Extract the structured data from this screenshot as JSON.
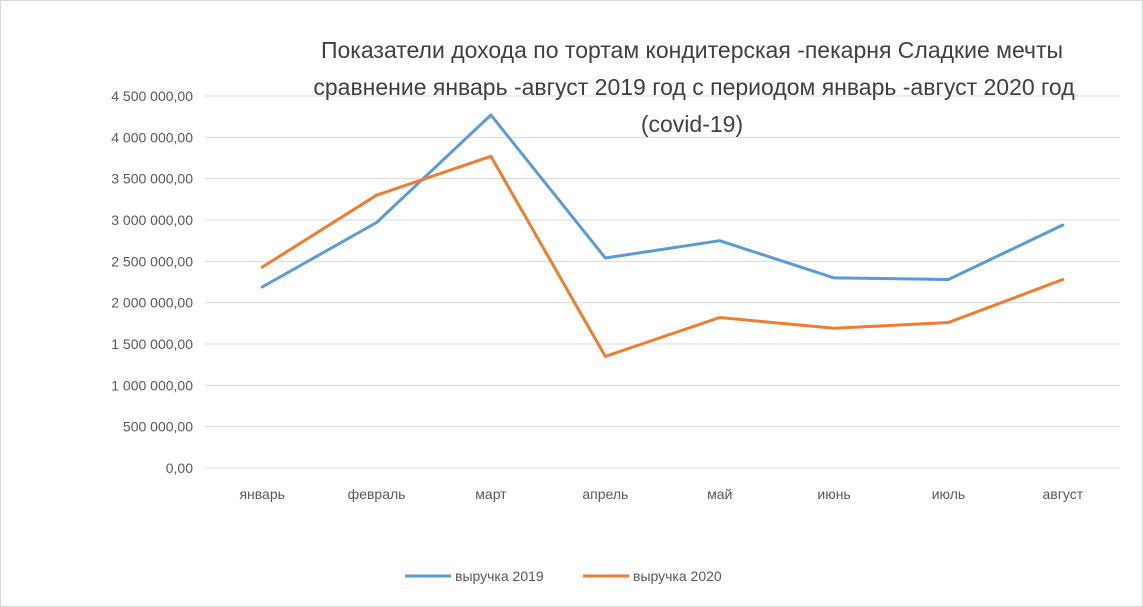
{
  "chart_data": {
    "type": "line",
    "title_lines": [
      "Показатели дохода по тортам кондитерская -пекарня  Сладкие мечты",
      "сравнение январь -август 2019 год  с периодом январь -август 2020 год",
      "(covid-19)"
    ],
    "categories": [
      "январь",
      "февраль",
      "март",
      "апрель",
      "май",
      "июнь",
      "июль",
      "август"
    ],
    "y_ticks": [
      "0,00",
      "500 000,00",
      "1 000 000,00",
      "1 500 000,00",
      "2 000 000,00",
      "2 500 000,00",
      "3 000 000,00",
      "3 500 000,00",
      "4 000 000,00",
      "4 500 000,00"
    ],
    "ylim": [
      0,
      4500000
    ],
    "grid": true,
    "legend_position": "bottom",
    "series": [
      {
        "name": "выручка 2019",
        "color": "#5b9bd5",
        "values": [
          2190000,
          2970000,
          4270000,
          2540000,
          2750000,
          2300000,
          2280000,
          2940000
        ]
      },
      {
        "name": "выручка 2020",
        "color": "#ed7d31",
        "values": [
          2430000,
          3300000,
          3770000,
          1350000,
          1820000,
          1690000,
          1760000,
          2280000
        ]
      }
    ]
  }
}
